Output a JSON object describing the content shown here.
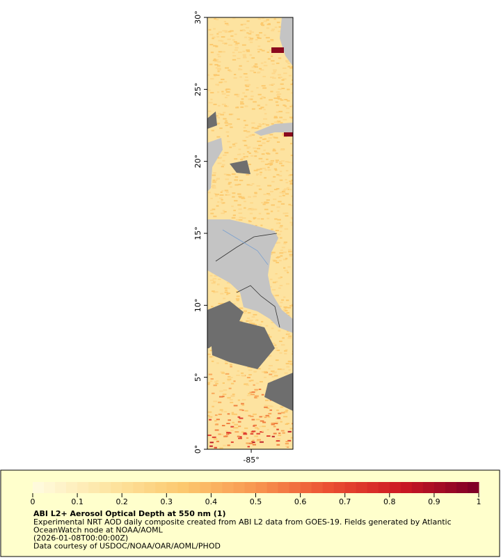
{
  "map": {
    "lat_range": [
      0,
      30
    ],
    "lon_range": [
      -88.05,
      -82.1
    ],
    "lat_ticks": [
      {
        "value": 0,
        "label": "0°"
      },
      {
        "value": 5,
        "label": "5°"
      },
      {
        "value": 10,
        "label": "10°"
      },
      {
        "value": 15,
        "label": "15°"
      },
      {
        "value": 20,
        "label": "20°"
      },
      {
        "value": 25,
        "label": "25°"
      },
      {
        "value": 30,
        "label": "30°"
      }
    ],
    "lon_ticks": [
      {
        "value": -85,
        "label": "-85°"
      }
    ]
  },
  "legend": {
    "colorbar": {
      "range": [
        0,
        1
      ],
      "ticks": [
        0,
        0.1,
        0.2,
        0.3,
        0.4,
        0.5,
        0.6,
        0.7,
        0.8,
        0.9,
        1
      ]
    },
    "title": "ABI L2+ Aerosol Optical Depth at 550 nm (1)",
    "lines": [
      "Experimental NRT AOD daily composite created from ABI L2 data from GOES-19. Fields generated by Atlantic",
      "OceanWatch node at NOAA/AOML",
      "(2026-01-08T00:00:00Z)",
      "Data courtesy of USDOC/NOAA/OAR/AOML/PHOD"
    ]
  }
}
